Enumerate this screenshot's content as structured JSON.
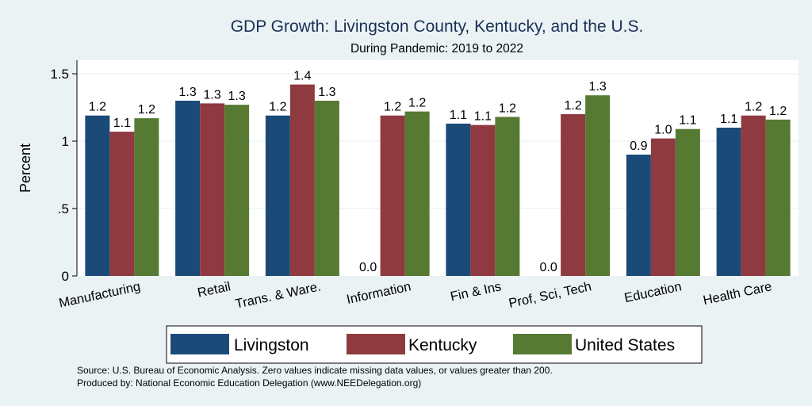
{
  "chart_data": {
    "type": "bar",
    "title": "GDP Growth: Livingston County, Kentucky, and the U.S.",
    "subtitle": "During Pandemic: 2019 to 2022",
    "ylabel": "Percent",
    "xlabel": "",
    "ylim": [
      0,
      1.6
    ],
    "yticks": [
      0,
      0.5,
      1,
      1.5
    ],
    "ytick_labels": [
      "0",
      ".5",
      "1",
      "1.5"
    ],
    "grid": true,
    "legend_position": "bottom",
    "categories": [
      "Manufacturing",
      "Retail",
      "Trans. & Ware.",
      "Information",
      "Fin & Ins",
      "Prof, Sci, Tech",
      "Education",
      "Health Care"
    ],
    "series": [
      {
        "name": "Livingston",
        "color": "#1b4a79",
        "values": [
          1.19,
          1.3,
          1.19,
          0.0,
          1.13,
          0.0,
          0.9,
          1.1
        ],
        "labels": [
          "1.2",
          "1.3",
          "1.2",
          "0.0",
          "1.1",
          "0.0",
          "0.9",
          "1.1"
        ]
      },
      {
        "name": "Kentucky",
        "color": "#8f3a41",
        "values": [
          1.07,
          1.28,
          1.42,
          1.19,
          1.12,
          1.2,
          1.02,
          1.19
        ],
        "labels": [
          "1.1",
          "1.3",
          "1.4",
          "1.2",
          "1.1",
          "1.2",
          "1.0",
          "1.2"
        ]
      },
      {
        "name": "United States",
        "color": "#577a33",
        "values": [
          1.17,
          1.27,
          1.3,
          1.22,
          1.18,
          1.34,
          1.09,
          1.16
        ],
        "labels": [
          "1.2",
          "1.3",
          "1.3",
          "1.2",
          "1.2",
          "1.3",
          "1.1",
          "1.2"
        ]
      }
    ],
    "colors": {
      "background": "#eaf2f3",
      "plot_background": "#ffffff",
      "title": "#1a2f58"
    }
  },
  "notes": {
    "source": "Source: U.S. Bureau of Economic Analysis. Zero values indicate missing data values, or values greater than 200.",
    "produced_by": "Produced by: National Economic Education Delegation (www.NEEDelegation.org)"
  }
}
